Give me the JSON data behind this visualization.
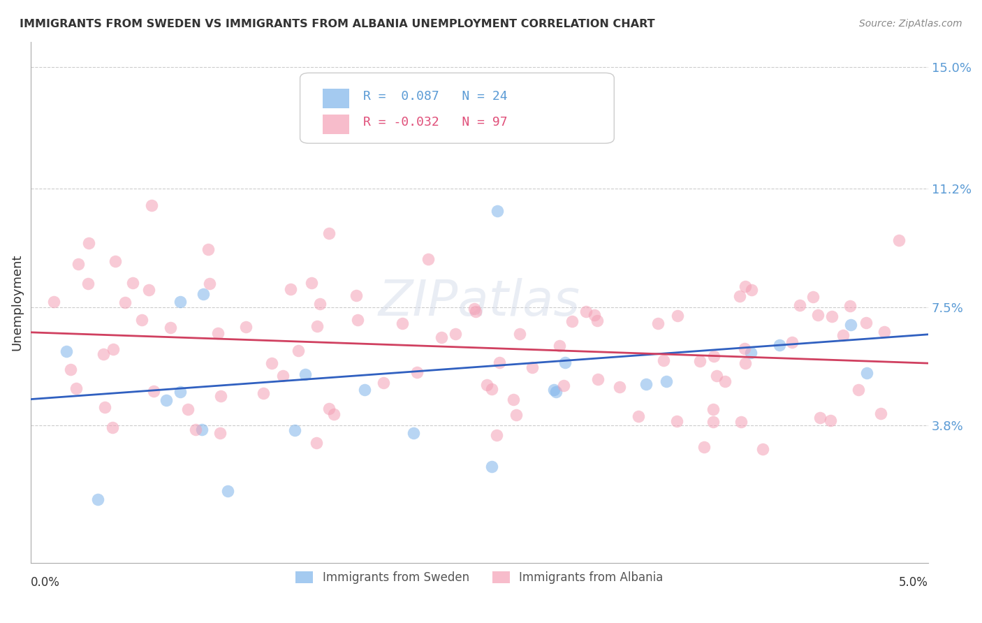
{
  "title": "IMMIGRANTS FROM SWEDEN VS IMMIGRANTS FROM ALBANIA UNEMPLOYMENT CORRELATION CHART",
  "source": "Source: ZipAtlas.com",
  "ylabel": "Unemployment",
  "xlim": [
    0.0,
    0.05
  ],
  "ylim": [
    -0.005,
    0.158
  ],
  "legend_sweden": "Immigrants from Sweden",
  "legend_albania": "Immigrants from Albania",
  "R_sweden": 0.087,
  "N_sweden": 24,
  "R_albania": -0.032,
  "N_albania": 97,
  "color_sweden": "#7EB4EA",
  "color_albania": "#F4A0B5",
  "trend_color_sweden": "#3060C0",
  "trend_color_albania": "#D04060",
  "ytick_vals": [
    0.038,
    0.075,
    0.112,
    0.15
  ],
  "ytick_labels": [
    "3.8%",
    "7.5%",
    "11.2%",
    "15.0%"
  ],
  "ytick_color": "#5B9BD5",
  "watermark_color": "#D0D8E8",
  "title_fontsize": 11.5,
  "source_fontsize": 10,
  "tick_label_fontsize": 13,
  "scatter_alpha": 0.55,
  "scatter_size": 160,
  "trend_linewidth": 2.0
}
